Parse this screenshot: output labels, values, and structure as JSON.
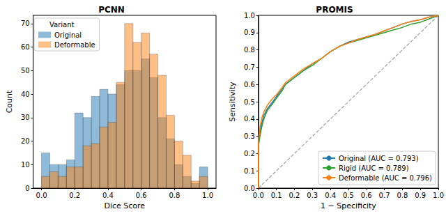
{
  "chart_data": [
    {
      "type": "histogram",
      "title": "PCNN",
      "x_label": "Dice Score",
      "y_label": "Count",
      "bins": [
        0,
        0.05,
        0.1,
        0.15,
        0.2,
        0.25,
        0.3,
        0.35,
        0.4,
        0.45,
        0.5,
        0.55,
        0.6,
        0.65,
        0.7,
        0.75,
        0.8,
        0.85,
        0.9,
        0.95,
        1.0
      ],
      "series": [
        {
          "name": "Original",
          "color": "#1f77b4",
          "values": [
            15,
            10,
            10,
            12,
            32,
            30,
            39,
            42,
            40,
            44,
            50,
            50,
            55,
            47,
            30,
            21,
            10,
            5,
            2,
            9
          ]
        },
        {
          "name": "Deformable",
          "color": "#ff7f0e",
          "values": [
            5,
            7,
            5,
            9,
            9,
            18,
            19,
            26,
            28,
            45,
            70,
            62,
            66,
            57,
            48,
            31,
            20,
            14,
            3,
            5
          ]
        }
      ],
      "xlim": [
        -0.05,
        1.05
      ],
      "ylim": [
        0,
        73.5
      ],
      "xticks": [
        {
          "value": 0,
          "label": "0.0"
        },
        {
          "value": 0.2,
          "label": "0.2"
        },
        {
          "value": 0.4,
          "label": "0.4"
        },
        {
          "value": 0.6,
          "label": "0.6"
        },
        {
          "value": 0.8,
          "label": "0.8"
        },
        {
          "value": 1,
          "label": "1.0"
        }
      ],
      "yticks": [
        0,
        10,
        20,
        30,
        40,
        50,
        60,
        70
      ],
      "legend": "upper left",
      "legend_title": "Variant",
      "grid": false
    },
    {
      "type": "line",
      "title": "PROMIS",
      "x_label": "1 − Specificity",
      "y_label": "Sensitivity",
      "series": [
        {
          "name": "Original (AUC = 0.793)",
          "color": "#1f77b4",
          "x": [
            0,
            0,
            0.01,
            0.02,
            0.03,
            0.05,
            0.08,
            0.1,
            0.13,
            0.15,
            0.2,
            0.25,
            0.3,
            0.35,
            0.4,
            0.45,
            0.5,
            0.55,
            0.6,
            0.65,
            0.7,
            0.75,
            0.8,
            0.85,
            0.9,
            0.95,
            1
          ],
          "values": [
            0,
            0.25,
            0.33,
            0.38,
            0.42,
            0.46,
            0.5,
            0.53,
            0.57,
            0.6,
            0.64,
            0.68,
            0.72,
            0.75,
            0.79,
            0.82,
            0.845,
            0.86,
            0.875,
            0.89,
            0.91,
            0.93,
            0.95,
            0.965,
            0.975,
            0.99,
            1
          ]
        },
        {
          "name": "Rigid (AUC = 0.789)",
          "color": "#2ca02c",
          "x": [
            0,
            0,
            0.01,
            0.02,
            0.03,
            0.05,
            0.08,
            0.1,
            0.13,
            0.15,
            0.2,
            0.25,
            0.3,
            0.35,
            0.4,
            0.45,
            0.5,
            0.55,
            0.6,
            0.65,
            0.7,
            0.75,
            0.8,
            0.85,
            0.9,
            0.95,
            1
          ],
          "values": [
            0,
            0.24,
            0.31,
            0.36,
            0.4,
            0.45,
            0.49,
            0.52,
            0.56,
            0.6,
            0.64,
            0.68,
            0.71,
            0.75,
            0.79,
            0.82,
            0.84,
            0.855,
            0.87,
            0.885,
            0.9,
            0.915,
            0.93,
            0.95,
            0.96,
            0.98,
            1
          ]
        },
        {
          "name": "Deformable (AUC = 0.796)",
          "color": "#ff7f0e",
          "x": [
            0,
            0,
            0.01,
            0.02,
            0.03,
            0.05,
            0.08,
            0.1,
            0.13,
            0.15,
            0.2,
            0.25,
            0.3,
            0.35,
            0.4,
            0.45,
            0.5,
            0.55,
            0.6,
            0.65,
            0.7,
            0.75,
            0.8,
            0.85,
            0.9,
            0.95,
            1
          ],
          "values": [
            0,
            0.26,
            0.36,
            0.41,
            0.44,
            0.48,
            0.52,
            0.54,
            0.58,
            0.61,
            0.65,
            0.69,
            0.72,
            0.75,
            0.79,
            0.82,
            0.84,
            0.86,
            0.875,
            0.89,
            0.91,
            0.93,
            0.95,
            0.965,
            0.975,
            0.99,
            1
          ]
        }
      ],
      "reference_line": {
        "x": [
          0,
          1
        ],
        "values": [
          0,
          1
        ],
        "color": "#a0a0a0",
        "line_style": "dashed"
      },
      "xlim": [
        0,
        1
      ],
      "ylim": [
        0,
        1
      ],
      "xticks": [
        {
          "value": 0,
          "label": "0.0"
        },
        {
          "value": 0.1,
          "label": "0.1"
        },
        {
          "value": 0.2,
          "label": "0.2"
        },
        {
          "value": 0.3,
          "label": "0.3"
        },
        {
          "value": 0.4,
          "label": "0.4"
        },
        {
          "value": 0.5,
          "label": "0.5"
        },
        {
          "value": 0.6,
          "label": "0.6"
        },
        {
          "value": 0.7,
          "label": "0.7"
        },
        {
          "value": 0.8,
          "label": "0.8"
        },
        {
          "value": 0.9,
          "label": "0.9"
        },
        {
          "value": 1,
          "label": "1.0"
        }
      ],
      "yticks": [
        {
          "value": 0,
          "label": "0.0"
        },
        {
          "value": 0.1,
          "label": "0.1"
        },
        {
          "value": 0.2,
          "label": "0.2"
        },
        {
          "value": 0.3,
          "label": "0.3"
        },
        {
          "value": 0.4,
          "label": "0.4"
        },
        {
          "value": 0.5,
          "label": "0.5"
        },
        {
          "value": 0.6,
          "label": "0.6"
        },
        {
          "value": 0.7,
          "label": "0.7"
        },
        {
          "value": 0.8,
          "label": "0.8"
        },
        {
          "value": 0.9,
          "label": "0.9"
        },
        {
          "value": 1,
          "label": "1.0"
        }
      ],
      "legend": "lower right",
      "grid": false
    }
  ]
}
